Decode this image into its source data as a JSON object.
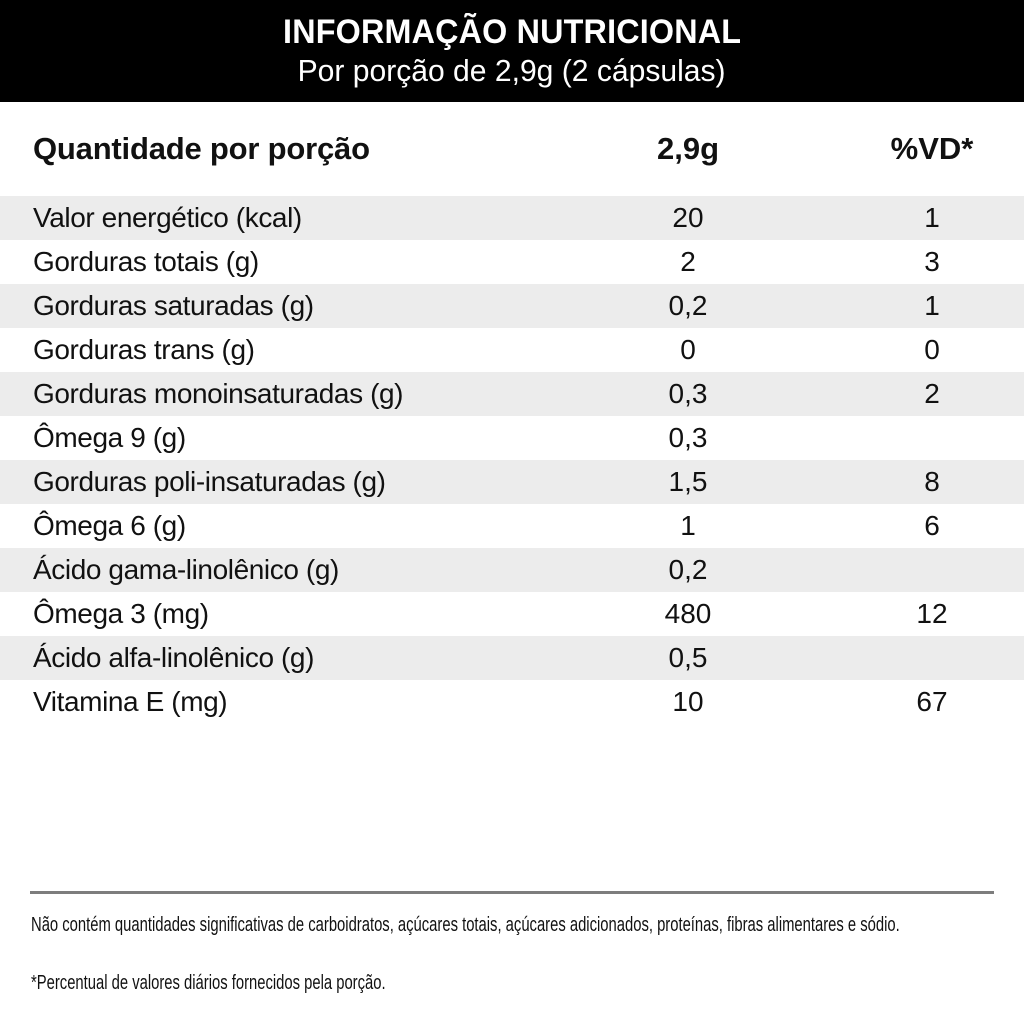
{
  "header": {
    "title": "INFORMAÇÃO NUTRICIONAL",
    "subtitle": "Por porção de 2,9g (2 cápsulas)"
  },
  "table": {
    "columns": {
      "label": "Quantidade por porção",
      "amount": "2,9g",
      "dv": "%VD*"
    },
    "rows": [
      {
        "label": "Valor energético (kcal)",
        "amount": "20",
        "dv": "1"
      },
      {
        "label": "Gorduras totais (g)",
        "amount": "2",
        "dv": "3"
      },
      {
        "label": "Gorduras saturadas (g)",
        "amount": "0,2",
        "dv": "1"
      },
      {
        "label": "Gorduras trans (g)",
        "amount": "0",
        "dv": "0"
      },
      {
        "label": "Gorduras monoinsaturadas (g)",
        "amount": "0,3",
        "dv": "2"
      },
      {
        "label": "Ômega 9 (g)",
        "amount": "0,3",
        "dv": ""
      },
      {
        "label": "Gorduras poli-insaturadas (g)",
        "amount": "1,5",
        "dv": "8"
      },
      {
        "label": "Ômega 6 (g)",
        "amount": "1",
        "dv": "6"
      },
      {
        "label": "Ácido gama-linolênico (g)",
        "amount": "0,2",
        "dv": ""
      },
      {
        "label": "Ômega 3 (mg)",
        "amount": "480",
        "dv": "12"
      },
      {
        "label": "Ácido alfa-linolênico (g)",
        "amount": "0,5",
        "dv": ""
      },
      {
        "label": "Vitamina E (mg)",
        "amount": "10",
        "dv": "67"
      }
    ]
  },
  "footnotes": {
    "no_significant_amounts": "Não contém quantidades significativas de carboidratos, açúcares totais, açúcares adicionados, proteínas, fibras alimentares e sódio.",
    "daily_values": "*Percentual de valores diários fornecidos pela porção."
  },
  "colors": {
    "bar_background": "#000000",
    "bar_text": "#ffffff",
    "stripe": "#ececec",
    "divider": "#7d7d7d",
    "text": "#111111"
  }
}
